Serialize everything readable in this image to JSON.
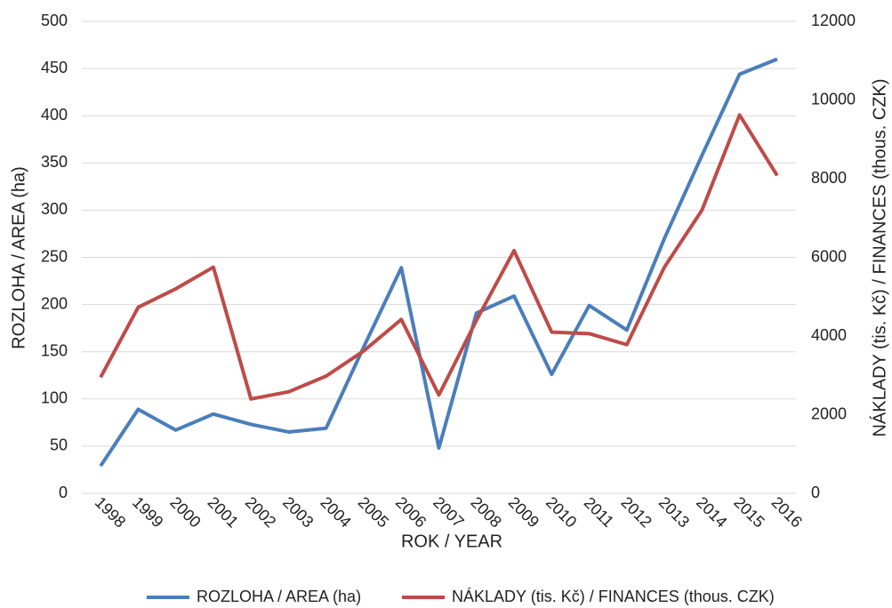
{
  "chart_data": {
    "type": "line",
    "categories": [
      "1998",
      "1999",
      "2000",
      "2001",
      "2002",
      "2003",
      "2004",
      "2005",
      "2006",
      "2007",
      "2008",
      "2009",
      "2010",
      "2011",
      "2012",
      "2013",
      "2014",
      "2015",
      "2016"
    ],
    "series": [
      {
        "name": "ROZLOHA / AREA (ha)",
        "color": "#4a7ebb",
        "values": [
          29,
          89,
          67,
          84,
          73,
          65,
          69,
          155,
          239,
          48,
          191,
          209,
          126,
          199,
          173,
          270,
          358,
          444,
          460
        ]
      },
      {
        "name": "NÁKLADY (tis. Kč) / FINANCES (thous. CZK)",
        "color": "#be4b48",
        "axis": "y2",
        "values": [
          2950,
          4730,
          5200,
          5750,
          2400,
          2580,
          2980,
          3620,
          4420,
          2500,
          4400,
          6170,
          4100,
          4060,
          3780,
          5750,
          7200,
          9620,
          8080
        ]
      }
    ],
    "xlabel": "ROK / YEAR",
    "ylabel": "ROZLOHA / AREA (ha)",
    "y2label": "NÁKLADY (tis. Kč) / FINANCES (thous. CZK)",
    "ylim": [
      0,
      500
    ],
    "yticks": [
      0,
      50,
      100,
      150,
      200,
      250,
      300,
      350,
      400,
      450,
      500
    ],
    "y2lim": [
      0,
      12000
    ],
    "y2ticks": [
      0,
      2000,
      4000,
      6000,
      8000,
      10000,
      12000
    ],
    "grid": true,
    "legend": "bottom"
  }
}
